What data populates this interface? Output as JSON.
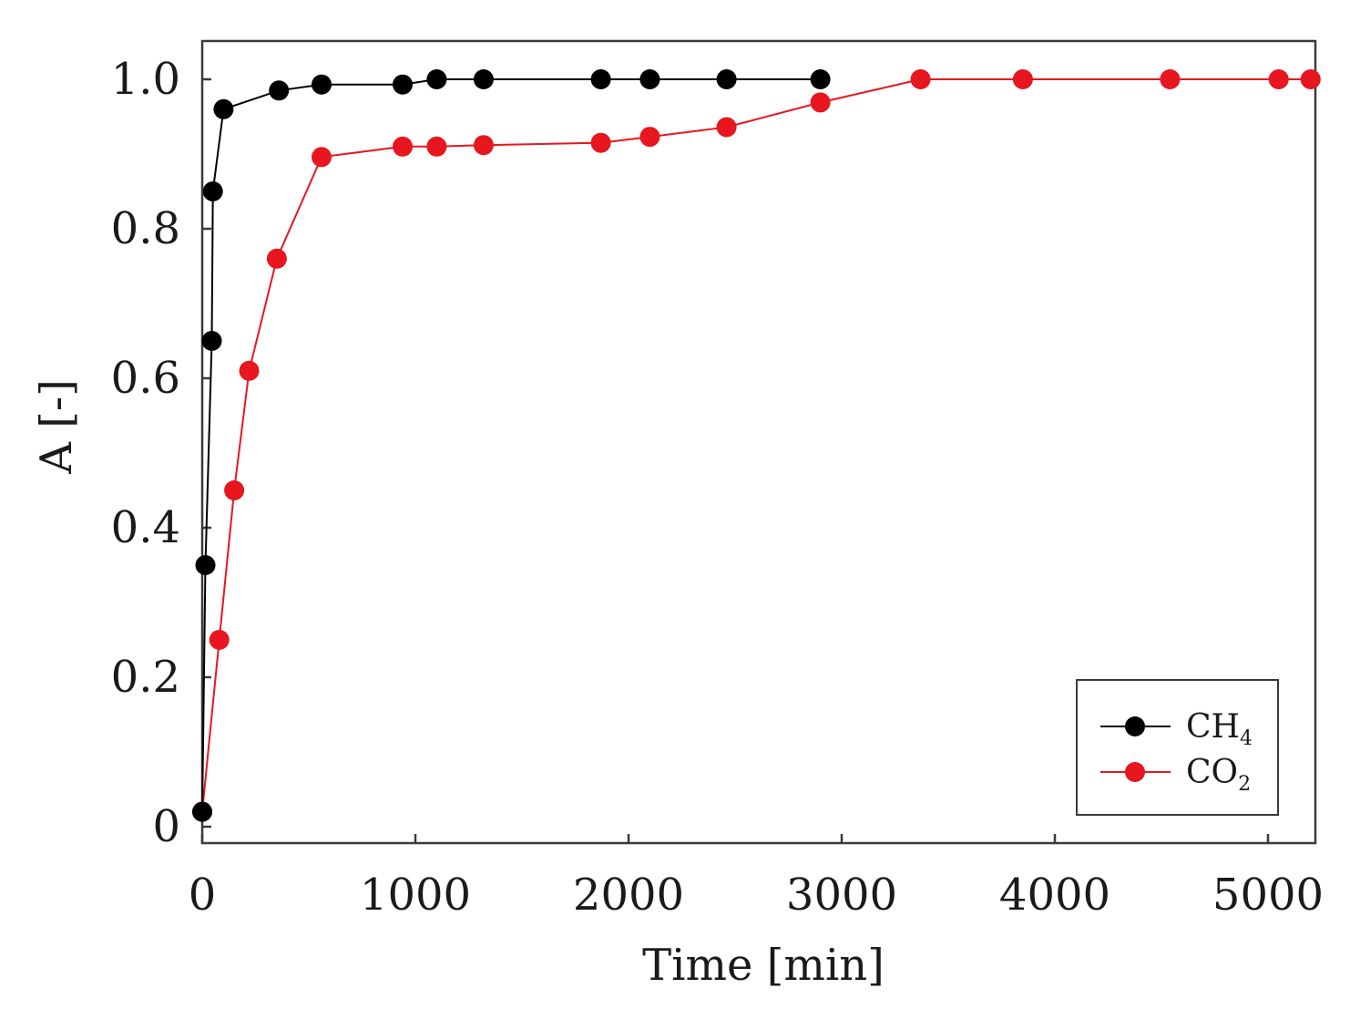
{
  "chart_data": {
    "type": "line",
    "title": "",
    "xlabel": "Time [min]",
    "ylabel": "A [-]",
    "xlim": [
      0,
      5250
    ],
    "ylim": [
      0,
      1.05
    ],
    "xticks": [
      0,
      1000,
      2000,
      3000,
      4000,
      5000
    ],
    "yticks": [
      0,
      0.2,
      0.4,
      0.6,
      0.8,
      1.0
    ],
    "xtick_labels": [
      "0",
      "1000",
      "2000",
      "3000",
      "4000",
      "5000"
    ],
    "ytick_labels": [
      "0",
      "0.2",
      "0.4",
      "0.6",
      "0.8",
      "1.0"
    ],
    "grid": false,
    "legend_position": "bottom-right",
    "series": [
      {
        "name": "CH4",
        "label_main": "CH",
        "label_sub": "4",
        "color": "#000000",
        "x": [
          0,
          15,
          45,
          50,
          100,
          360,
          560,
          940,
          1100,
          1320,
          1870,
          2100,
          2460,
          2900
        ],
        "y": [
          0.02,
          0.35,
          0.65,
          0.85,
          0.96,
          0.985,
          0.993,
          0.993,
          1.0,
          1.0,
          1.0,
          1.0,
          1.0,
          1.0
        ]
      },
      {
        "name": "CO2",
        "label_main": "CO",
        "label_sub": "2",
        "color": "#e8161e",
        "x": [
          0,
          80,
          150,
          220,
          350,
          560,
          940,
          1100,
          1320,
          1870,
          2100,
          2460,
          2900,
          3370,
          3850,
          4540,
          5050,
          5200
        ],
        "y": [
          0.02,
          0.25,
          0.45,
          0.61,
          0.76,
          0.896,
          0.91,
          0.91,
          0.912,
          0.915,
          0.923,
          0.936,
          0.969,
          1.0,
          1.0,
          1.0,
          1.0,
          1.0
        ]
      }
    ]
  }
}
